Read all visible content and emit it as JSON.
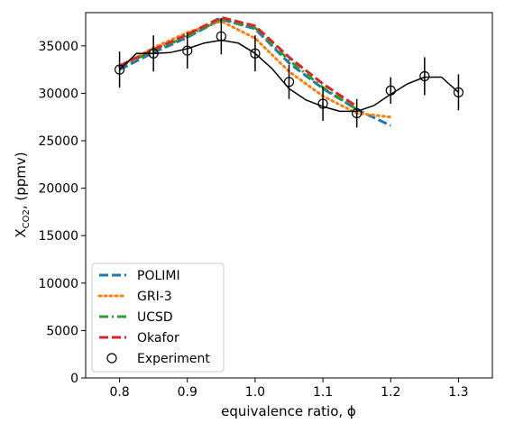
{
  "chart_data": {
    "type": "line",
    "title": "",
    "xlabel": "equivalence ratio, ϕ",
    "ylabel_main": "X",
    "ylabel_sub": "CO2",
    "ylabel_rest": ", (ppmv)",
    "xlim": [
      0.75,
      1.35
    ],
    "ylim": [
      0,
      38500
    ],
    "xticks": [
      0.8,
      0.9,
      1.0,
      1.1,
      1.2,
      1.3
    ],
    "xtick_labels": [
      "0.8",
      "0.9",
      "1.0",
      "1.1",
      "1.2",
      "1.3"
    ],
    "yticks": [
      0,
      5000,
      10000,
      15000,
      20000,
      25000,
      30000,
      35000
    ],
    "ytick_labels": [
      "0",
      "5000",
      "10000",
      "15000",
      "20000",
      "25000",
      "30000",
      "35000"
    ],
    "legend_position": "lower-left",
    "series": [
      {
        "name": "POLIMI",
        "color": "#1f77b4",
        "style": "dashed",
        "x": [
          0.8,
          0.85,
          0.9,
          0.95,
          1.0,
          1.05,
          1.1,
          1.15,
          1.2
        ],
        "y": [
          32500,
          34300,
          35900,
          37800,
          36800,
          33200,
          30500,
          28300,
          26600
        ]
      },
      {
        "name": "GRI-3",
        "color": "#ff7f0e",
        "style": "dotted",
        "x": [
          0.8,
          0.85,
          0.9,
          0.95,
          1.0,
          1.05,
          1.1,
          1.15,
          1.2
        ],
        "y": [
          32800,
          34800,
          36400,
          37600,
          35800,
          32300,
          29700,
          27900,
          27500
        ]
      },
      {
        "name": "UCSD",
        "color": "#2ca02c",
        "style": "dashdot",
        "x": [
          0.8,
          0.85,
          0.9,
          0.95,
          1.0,
          1.05,
          1.1,
          1.15
        ],
        "y": [
          32800,
          34500,
          36000,
          37800,
          36900,
          33500,
          30600,
          28300
        ]
      },
      {
        "name": "Okafor",
        "color": "#d62728",
        "style": "dashed",
        "x": [
          0.8,
          0.85,
          0.9,
          0.95,
          1.0,
          1.05,
          1.1,
          1.15
        ],
        "y": [
          32900,
          34600,
          36200,
          38000,
          37100,
          33800,
          31000,
          28600
        ]
      }
    ],
    "experiment": {
      "name": "Experiment",
      "color": "#000000",
      "x": [
        0.8,
        0.85,
        0.9,
        0.95,
        1.0,
        1.05,
        1.1,
        1.15,
        1.2,
        1.25,
        1.3
      ],
      "y": [
        32500,
        34200,
        34500,
        36000,
        34200,
        31200,
        28900,
        27900,
        30300,
        31800,
        30100
      ],
      "err": [
        1900,
        1900,
        1900,
        1900,
        1900,
        1800,
        1800,
        1500,
        1400,
        2000,
        1900
      ],
      "curve_x": [
        0.8,
        0.825,
        0.85,
        0.875,
        0.9,
        0.925,
        0.95,
        0.975,
        1.0,
        1.025,
        1.05,
        1.075,
        1.1,
        1.125,
        1.15,
        1.175,
        1.2,
        1.225,
        1.25,
        1.275,
        1.3
      ],
      "curve_y": [
        32500,
        34200,
        34200,
        34300,
        34700,
        35300,
        35600,
        35300,
        34200,
        32600,
        30500,
        29300,
        28600,
        28100,
        28100,
        28700,
        29900,
        31000,
        31700,
        31700,
        30100
      ]
    }
  }
}
